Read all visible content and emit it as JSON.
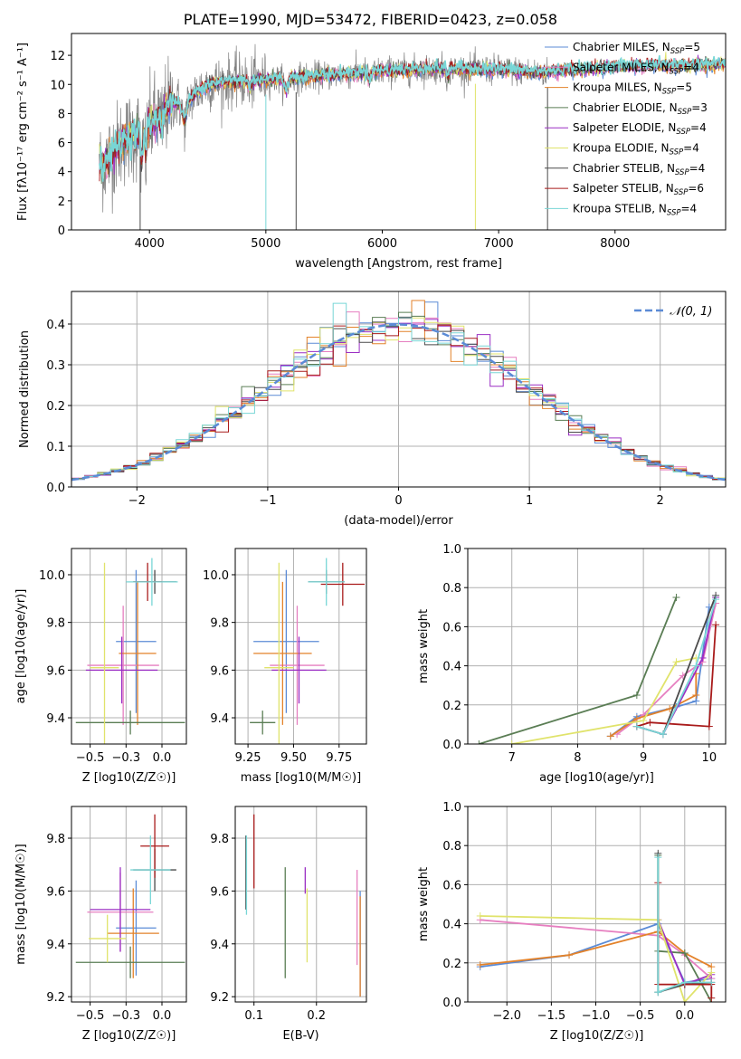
{
  "figure": {
    "title": "PLATE=1990, MJD=53472, FIBERID=0423, z=0.058"
  },
  "colors": {
    "models": [
      "#5b8bd6",
      "#e67fc0",
      "#e3822a",
      "#5a7d54",
      "#9b2fc4",
      "#e0e36b",
      "#4a4a4a",
      "#a91b1b",
      "#78d6d6"
    ],
    "data": "#808080",
    "normal": "#5b8bd6",
    "grid": "#b0b0b0"
  },
  "chart_data": [
    {
      "id": "spectrum",
      "type": "line",
      "xlabel": "wavelength [Angstrom, rest frame]",
      "ylabel": "Flux [fλ10⁻¹⁷ erg cm⁻² s⁻¹ A⁻¹]",
      "xlim": [
        3330,
        8950
      ],
      "ylim": [
        0,
        13.5
      ],
      "xticks": [
        4000,
        5000,
        6000,
        7000,
        8000
      ],
      "yticks": [
        0,
        2,
        4,
        6,
        8,
        10,
        12
      ],
      "grid": false,
      "legend_position": "right",
      "legend": [
        "Chabrier MILES, N_SSP=5",
        "Salpeter MILES, N_SSP=4",
        "Kroupa MILES, N_SSP=5",
        "Chabrier ELODIE, N_SSP=3",
        "Salpeter ELODIE, N_SSP=4",
        "Kroupa ELODIE, N_SSP=4",
        "Chabrier STELIB, N_SSP=4",
        "Salpeter STELIB, N_SSP=6",
        "Kroupa STELIB, N_SSP=4"
      ],
      "continuum": {
        "x": [
          3600,
          3700,
          3800,
          3900,
          4000,
          4100,
          4200,
          4300,
          4400,
          4500,
          4700,
          5000,
          5500,
          6000,
          6500,
          7000,
          7200,
          7400,
          7600,
          7800,
          8000,
          8300,
          8600,
          8900
        ],
        "y": [
          4.5,
          5.5,
          6.3,
          6.6,
          7.2,
          8.0,
          8.8,
          8.6,
          9.4,
          10.0,
          10.2,
          10.3,
          10.6,
          10.9,
          11.1,
          11.0,
          10.9,
          10.8,
          11.0,
          11.1,
          11.2,
          11.3,
          11.3,
          11.4
        ]
      },
      "model_range": [
        3570,
        8950
      ],
      "data_range": [
        3570,
        7420
      ]
    },
    {
      "id": "residuals",
      "type": "line",
      "xlabel": "(data-model)/error",
      "ylabel": "Normed distribution",
      "xlim": [
        -2.5,
        2.5
      ],
      "ylim": [
        0,
        0.48
      ],
      "xticks": [
        -2,
        -1,
        0,
        1,
        2
      ],
      "yticks": [
        0.0,
        0.1,
        0.2,
        0.3,
        0.4
      ],
      "grid": true,
      "legend_position": "upper right",
      "legend": [
        "N(0,1)"
      ],
      "bin_width": 0.1,
      "normal_mean": 0,
      "normal_sigma": 1
    },
    {
      "id": "age_vs_Z",
      "type": "scatter",
      "xlabel": "Z [log10(Z/Z☉)]",
      "ylabel": "age  [log10(age/yr)]",
      "xlim": [
        -0.63,
        0.17
      ],
      "ylim": [
        9.29,
        10.11
      ],
      "xticks": [
        -0.5,
        -0.25,
        0.0
      ],
      "yticks": [
        9.4,
        9.6,
        9.8,
        10.0
      ],
      "grid": true,
      "points": [
        {
          "x": -0.18,
          "y": 9.72,
          "xerr": 0.14,
          "yerr": 0.3
        },
        {
          "x": -0.27,
          "y": 9.62,
          "xerr": 0.25,
          "yerr": 0.25
        },
        {
          "x": -0.17,
          "y": 9.67,
          "xerr": 0.13,
          "yerr": 0.3
        },
        {
          "x": -0.22,
          "y": 9.38,
          "xerr": 0.38,
          "yerr": 0.05
        },
        {
          "x": -0.28,
          "y": 9.6,
          "xerr": 0.25,
          "yerr": 0.14
        },
        {
          "x": -0.4,
          "y": 9.61,
          "xerr": 0.1,
          "yerr": 0.44
        },
        {
          "x": -0.05,
          "y": 9.97,
          "xerr": 0.15,
          "yerr": 0.05
        },
        {
          "x": -0.1,
          "y": 9.97,
          "xerr": 0.1,
          "yerr": 0.08
        },
        {
          "x": -0.07,
          "y": 9.97,
          "xerr": 0.18,
          "yerr": 0.1
        }
      ]
    },
    {
      "id": "age_vs_mass",
      "type": "scatter",
      "xlabel": "mass [log10(M/M☉)]",
      "ylabel": "",
      "xlim": [
        9.18,
        9.9
      ],
      "ylim": [
        9.29,
        10.11
      ],
      "xticks": [
        9.25,
        9.5,
        9.75
      ],
      "yticks": [
        9.4,
        9.6,
        9.8,
        10.0
      ],
      "grid": true,
      "points": [
        {
          "x": 9.46,
          "y": 9.72,
          "xerr": 0.18,
          "yerr": 0.3
        },
        {
          "x": 9.52,
          "y": 9.62,
          "xerr": 0.15,
          "yerr": 0.25
        },
        {
          "x": 9.44,
          "y": 9.67,
          "xerr": 0.16,
          "yerr": 0.3
        },
        {
          "x": 9.33,
          "y": 9.38,
          "xerr": 0.07,
          "yerr": 0.05
        },
        {
          "x": 9.53,
          "y": 9.6,
          "xerr": 0.15,
          "yerr": 0.14
        },
        {
          "x": 9.42,
          "y": 9.61,
          "xerr": 0.08,
          "yerr": 0.44
        },
        {
          "x": 9.68,
          "y": 9.97,
          "xerr": 0.1,
          "yerr": 0.05
        },
        {
          "x": 9.77,
          "y": 9.96,
          "xerr": 0.12,
          "yerr": 0.09
        },
        {
          "x": 9.68,
          "y": 9.97,
          "xerr": 0.1,
          "yerr": 0.1
        }
      ]
    },
    {
      "id": "massweight_vs_age",
      "type": "line",
      "xlabel": "age  [log10(age/yr)]",
      "ylabel": "mass weight",
      "xlim": [
        6.33,
        10.25
      ],
      "ylim": [
        0.0,
        1.0
      ],
      "xticks": [
        7,
        8,
        9,
        10
      ],
      "yticks": [
        0.0,
        0.2,
        0.4,
        0.6,
        0.8,
        1.0
      ],
      "grid": true,
      "series": [
        {
          "x": [
            8.5,
            8.9,
            9.5,
            9.8,
            10.0
          ],
          "y": [
            0.04,
            0.14,
            0.19,
            0.22,
            0.7
          ]
        },
        {
          "x": [
            8.6,
            9.0,
            9.6,
            9.9,
            10.1
          ],
          "y": [
            0.05,
            0.15,
            0.35,
            0.42,
            0.72
          ]
        },
        {
          "x": [
            8.5,
            8.9,
            9.4,
            9.8,
            9.8
          ],
          "y": [
            0.04,
            0.13,
            0.18,
            0.25,
            0.36
          ]
        },
        {
          "x": [
            6.5,
            8.9,
            9.5
          ],
          "y": [
            0.0,
            0.25,
            0.75
          ]
        },
        {
          "x": [
            8.9,
            9.3,
            9.9,
            10.1
          ],
          "y": [
            0.09,
            0.05,
            0.44,
            0.75
          ]
        },
        {
          "x": [
            7.0,
            9.0,
            9.5,
            9.8
          ],
          "y": [
            0.0,
            0.12,
            0.42,
            0.44
          ]
        },
        {
          "x": [
            8.9,
            9.3,
            10.1
          ],
          "y": [
            0.09,
            0.05,
            0.76
          ]
        },
        {
          "x": [
            8.9,
            9.1,
            10.0,
            10.1
          ],
          "y": [
            0.09,
            0.11,
            0.09,
            0.61
          ]
        },
        {
          "x": [
            8.9,
            9.3,
            9.8,
            10.1
          ],
          "y": [
            0.09,
            0.05,
            0.4,
            0.74
          ]
        }
      ]
    },
    {
      "id": "mass_vs_Z",
      "type": "scatter",
      "xlabel": "Z [log10(Z/Z☉)]",
      "ylabel": "mass [log10(M/M☉)]",
      "xlim": [
        -0.63,
        0.17
      ],
      "ylim": [
        9.18,
        9.92
      ],
      "xticks": [
        -0.5,
        -0.25,
        0.0
      ],
      "yticks": [
        9.2,
        9.4,
        9.6,
        9.8
      ],
      "grid": true,
      "points": [
        {
          "x": -0.18,
          "y": 9.46,
          "xerr": 0.14,
          "yerr": 0.18
        },
        {
          "x": -0.29,
          "y": 9.52,
          "xerr": 0.23,
          "yerr": 0.15
        },
        {
          "x": -0.2,
          "y": 9.44,
          "xerr": 0.18,
          "yerr": 0.17
        },
        {
          "x": -0.22,
          "y": 9.33,
          "xerr": 0.38,
          "yerr": 0.06
        },
        {
          "x": -0.29,
          "y": 9.53,
          "xerr": 0.21,
          "yerr": 0.16
        },
        {
          "x": -0.38,
          "y": 9.42,
          "xerr": 0.13,
          "yerr": 0.09
        },
        {
          "x": -0.05,
          "y": 9.68,
          "xerr": 0.15,
          "yerr": 0.08
        },
        {
          "x": -0.05,
          "y": 9.77,
          "xerr": 0.1,
          "yerr": 0.12
        },
        {
          "x": -0.08,
          "y": 9.68,
          "xerr": 0.14,
          "yerr": 0.13
        }
      ]
    },
    {
      "id": "mass_vs_ebv",
      "type": "scatter",
      "xlabel": "E(B-V)",
      "ylabel": "",
      "xlim": [
        0.07,
        0.28
      ],
      "ylim": [
        9.18,
        9.92
      ],
      "xticks": [
        0.1,
        0.2
      ],
      "yticks": [
        9.2,
        9.4,
        9.6,
        9.8
      ],
      "grid": true,
      "points": [
        {
          "x": 0.27,
          "y": 9.4,
          "xerr": 0.0,
          "yerr": 0.2
        },
        {
          "x": 0.265,
          "y": 9.5,
          "xerr": 0.0,
          "yerr": 0.18
        },
        {
          "x": 0.27,
          "y": 9.39,
          "xerr": 0.0,
          "yerr": 0.19
        },
        {
          "x": 0.15,
          "y": 9.48,
          "xerr": 0.0,
          "yerr": 0.21
        },
        {
          "x": 0.182,
          "y": 9.64,
          "xerr": 0.0,
          "yerr": 0.05
        },
        {
          "x": 0.185,
          "y": 9.47,
          "xerr": 0.0,
          "yerr": 0.14
        },
        {
          "x": 0.087,
          "y": 9.67,
          "xerr": 0.0,
          "yerr": 0.14
        },
        {
          "x": 0.1,
          "y": 9.75,
          "xerr": 0.0,
          "yerr": 0.14
        },
        {
          "x": 0.088,
          "y": 9.66,
          "xerr": 0.0,
          "yerr": 0.15
        }
      ]
    },
    {
      "id": "massweight_vs_Z",
      "type": "line",
      "xlabel": "Z [log10(Z/Z☉)]",
      "ylabel": "mass weight",
      "xlim": [
        -2.44,
        0.46
      ],
      "ylim": [
        0.0,
        1.0
      ],
      "xticks": [
        -2.0,
        -1.5,
        -1.0,
        -0.5,
        0.0
      ],
      "yticks": [
        0.0,
        0.2,
        0.4,
        0.6,
        0.8,
        1.0
      ],
      "grid": true,
      "series": [
        {
          "x": [
            -2.3,
            -1.3,
            -0.3,
            0.0,
            0.3
          ],
          "y": [
            0.18,
            0.24,
            0.4,
            0.1,
            0.12
          ]
        },
        {
          "x": [
            -2.3,
            -0.3,
            0.0,
            0.3
          ],
          "y": [
            0.42,
            0.34,
            0.24,
            0.12
          ]
        },
        {
          "x": [
            -2.3,
            -1.3,
            -0.3,
            0.0,
            0.3
          ],
          "y": [
            0.19,
            0.24,
            0.36,
            0.25,
            0.18
          ]
        },
        {
          "x": [
            -0.3,
            -0.3,
            0.0,
            0.3
          ],
          "y": [
            0.75,
            0.26,
            0.25,
            0.0
          ]
        },
        {
          "x": [
            -0.3,
            0.0,
            0.3
          ],
          "y": [
            0.42,
            0.09,
            0.14
          ]
        },
        {
          "x": [
            -2.3,
            -0.3,
            0.0,
            0.3
          ],
          "y": [
            0.44,
            0.42,
            0.0,
            0.15
          ]
        },
        {
          "x": [
            -0.3,
            -0.3,
            0.0,
            0.3
          ],
          "y": [
            0.76,
            0.05,
            0.09,
            0.1
          ]
        },
        {
          "x": [
            -0.3,
            -0.3,
            0.0,
            0.3,
            0.3
          ],
          "y": [
            0.61,
            0.09,
            0.09,
            0.09,
            0.02
          ]
        },
        {
          "x": [
            -0.3,
            -0.3,
            0.0,
            0.3
          ],
          "y": [
            0.74,
            0.05,
            0.1,
            0.1
          ]
        }
      ]
    }
  ]
}
